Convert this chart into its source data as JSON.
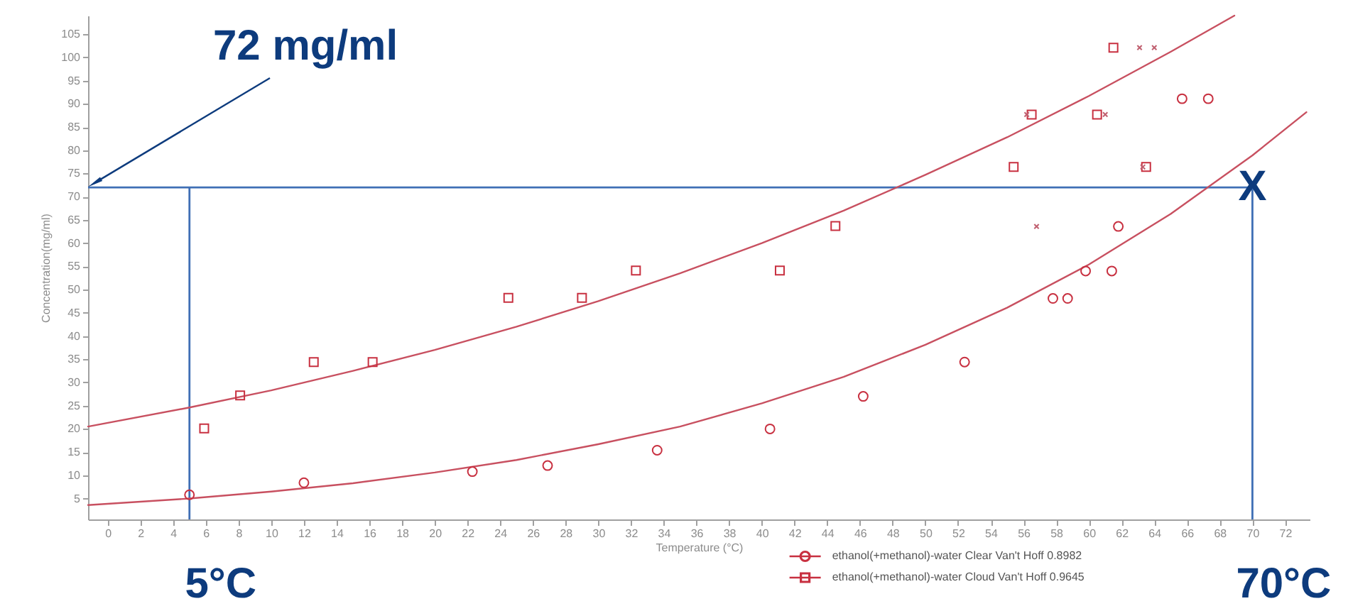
{
  "chart_data": {
    "type": "scatter",
    "xlabel": "Temperature (°C)",
    "ylabel": "Concentration(mg/ml)",
    "xlim": [
      -1.2,
      73.5
    ],
    "xticks": [
      0,
      2,
      4,
      6,
      8,
      10,
      12,
      14,
      16,
      18,
      20,
      22,
      24,
      26,
      28,
      30,
      32,
      34,
      36,
      38,
      40,
      42,
      44,
      46,
      48,
      50,
      52,
      54,
      56,
      58,
      60,
      62,
      64,
      66,
      68,
      70,
      72
    ],
    "ylim": [
      0.5,
      109
    ],
    "yticks": [
      5,
      10,
      15,
      20,
      25,
      30,
      35,
      40,
      45,
      50,
      55,
      60,
      65,
      70,
      75,
      80,
      85,
      90,
      95,
      100,
      105
    ],
    "legend": "bottom",
    "series": [
      {
        "name": "ethanol(+methanol)-water Clear Van't Hoff 0.8982",
        "type": "scatter",
        "marker": "circle",
        "color": "#c83040",
        "x": [
          5.0,
          12.0,
          22.3,
          26.9,
          33.6,
          40.5,
          46.2,
          52.4,
          57.8,
          58.7,
          59.8,
          61.4,
          61.8,
          65.7,
          67.3
        ],
        "values": [
          5.8,
          8.4,
          10.8,
          12.1,
          15.4,
          20.0,
          27.0,
          34.4,
          48.1,
          48.1,
          54.0,
          54.0,
          63.6,
          91.1,
          91.1
        ]
      },
      {
        "name": "ethanol(+methanol)-water Cloud Van't Hoff 0.9645",
        "type": "scatter",
        "marker": "square",
        "color": "#c83040",
        "x": [
          5.9,
          8.1,
          12.6,
          16.2,
          24.5,
          29.0,
          32.3,
          41.1,
          44.5,
          55.4,
          56.5,
          60.5,
          61.5,
          63.5
        ],
        "values": [
          20.1,
          27.2,
          34.4,
          34.4,
          48.2,
          48.2,
          54.1,
          54.1,
          63.7,
          76.4,
          87.7,
          87.7,
          102.1,
          76.4
        ]
      },
      {
        "type": "scatter",
        "marker": "cross",
        "color": "#c06070",
        "x": [
          56.2,
          56.8,
          61.0,
          63.1,
          63.3,
          64.0
        ],
        "values": [
          87.7,
          63.6,
          87.7,
          102.1,
          76.4,
          102.1
        ]
      },
      {
        "type": "line",
        "color": "#c85060",
        "x": [
          -1.2,
          5,
          10,
          15,
          20,
          25,
          30,
          35,
          40,
          45,
          50,
          55,
          60,
          65,
          70,
          73.3
        ],
        "values": [
          3.6,
          5.0,
          6.5,
          8.3,
          10.6,
          13.3,
          16.7,
          20.5,
          25.5,
          31.2,
          38.1,
          46.1,
          55.4,
          66.3,
          78.9,
          88.2
        ]
      },
      {
        "type": "line",
        "color": "#c85060",
        "x": [
          -1.2,
          5,
          10,
          15,
          20,
          25,
          30,
          35,
          40,
          45,
          50,
          55,
          60,
          65,
          68.9
        ],
        "values": [
          20.5,
          24.6,
          28.3,
          32.5,
          37.0,
          42.0,
          47.5,
          53.5,
          60.0,
          67.0,
          74.7,
          82.8,
          91.7,
          101.2,
          109.0
        ]
      }
    ],
    "ref_lines": [
      {
        "axis": "y",
        "value": 72,
        "label": "72 mg/ml",
        "color": "#3f6fb5"
      },
      {
        "axis": "x",
        "value": 5,
        "label": "5°C",
        "color": "#3f6fb5"
      },
      {
        "axis": "x",
        "value": 70,
        "label": "70°C",
        "color": "#3f6fb5"
      }
    ],
    "annotations": [
      {
        "text": "X",
        "x": 70,
        "y": 72
      }
    ]
  }
}
